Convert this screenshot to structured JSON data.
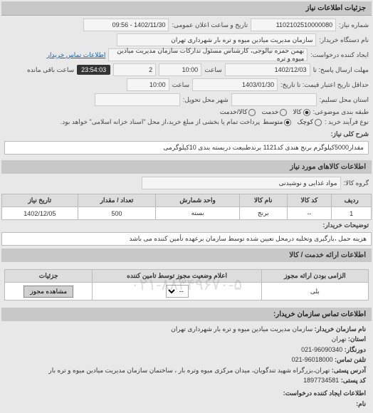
{
  "headers": {
    "need_details": "جزئیات اطلاعات نیاز",
    "goods_info": "اطلاعات کالاهای مورد نیاز",
    "services_info": "اطلاعات ارائه خدمت / کالا",
    "contact_info": "اطلاعات تماس سازمان خریدار:"
  },
  "form": {
    "req_no_label": "شماره نیاز:",
    "req_no": "1102102510000080",
    "announce_label": "تاریخ و ساعت اعلان عمومی:",
    "announce_val": "1402/11/30 - 09:56",
    "buyer_label": "نام دستگاه خریدار:",
    "buyer_val": "سازمان مدیریت میادین میوه و تره بار شهرداری تهران",
    "creator_label": "ایجاد کننده درخواست:",
    "creator_val": "بهمن حمزه نیالوجی، کارشناس مسئول تدارکات سازمان مدیریت میادین میوه و تره",
    "contact_link": "اطلاعات تماس خریدار",
    "deadline_label": "مهلت ارسال پاسخ: تا",
    "deadline_date": "1402/12/03",
    "time_label": "ساعت",
    "deadline_time": "10:00",
    "remain_val": "2",
    "remain_clock": "23:54:03",
    "remain_text": "ساعت باقی مانده",
    "validity_label": "حداقل تاریخ اعتبار قیمت: تا تاریخ:",
    "validity_date": "1403/01/30",
    "validity_time": "10:00",
    "city_label": "استان محل تسلیم:",
    "delivery_city_label": "شهر محل تحویل:",
    "category_label": "طبقه بندی موضوعی:",
    "cat_all": "کالا",
    "cat_service": "خدمت",
    "cat_both": "کالا/خدمت",
    "process_label": "نوع فرآیند خرید :",
    "proc_small": "کوچک",
    "proc_med": "متوسط",
    "proc_note": "پرداخت تمام یا بخشی از مبلغ خرید،از محل \"اسناد خزانه اسلامی\" خواهد بود.",
    "desc_label": "شرح کلی نیاز:",
    "desc_text": "مقدار5000کیلوگرم برنج هندی کد1121 برندطبیعت دربسته بندی 10کیلوگرمی"
  },
  "goods": {
    "group_label": "گروه کالا:",
    "group_val": "مواد غذایی و نوشیدنی",
    "columns": [
      "ردیف",
      "کد کالا",
      "نام کالا",
      "واحد شمارش",
      "تعداد / مقدار",
      "تاریخ نیاز"
    ],
    "rows": [
      [
        "1",
        "--",
        "برنج",
        "بسته",
        "500",
        "1402/12/05"
      ]
    ],
    "note_label": "توضیحات خریدار:",
    "note_text": "هزینه حمل ،بارگیری وتخلیه درمحل تعیین شده توسط سازمان برعهده تأمین کننده می باشد"
  },
  "watermark": "۰۲۱-۸۸۳۴۹۶۷۰-۵",
  "status": {
    "columns": [
      "الزامی بودن ارائه مجوز",
      "اعلام وضعیت مجوز توسط تامین کننده",
      "جزئیات"
    ],
    "required_val": "بلی",
    "select_val": "--",
    "btn_label": "مشاهده مجوز"
  },
  "contact": {
    "org_label": "نام سازمان خریدار:",
    "org_val": "سازمان مدیریت میادین میوه و تره بار شهرداری تهران",
    "province_label": "استان:",
    "province_val": "تهران",
    "phone_label": "تلفن تماس:",
    "phone_val": "96018000-021",
    "fax_label": "دورنگار:",
    "fax_val": "96090340-021",
    "address_label": "آدرس پستی:",
    "address_val": "تهران،بزرگراه شهید تندگویان، میدان مرکزی میوه وتره بار ، ساختمان سازمان مدیریت میادین میوه و تره بار",
    "post_label": "کد پستی:",
    "post_val": "1897734581",
    "req_contact_label": "اطلاعات ایجاد کننده درخواست:",
    "name_label": "نام:"
  }
}
